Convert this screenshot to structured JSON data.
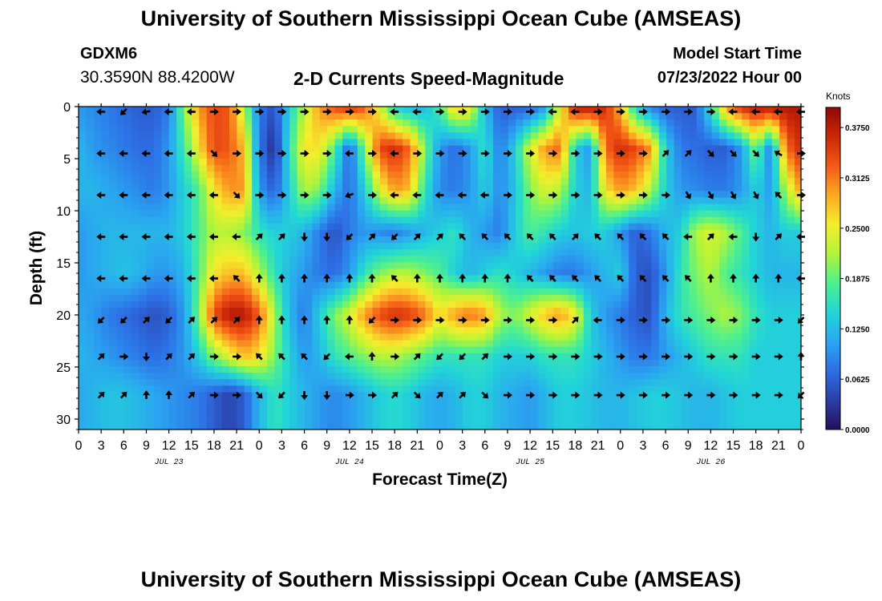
{
  "header": {
    "title": "University of Southern Mississippi Ocean Cube (AMSEAS)",
    "station": "GDXM6",
    "coords": "30.3590N  88.4200W",
    "subtitle": "2-D Currents Speed-Magnitude",
    "model_start_label": "Model Start Time",
    "model_start_value": "07/23/2022 Hour 00"
  },
  "footer": {
    "title_repeat": "University of Southern Mississippi Ocean Cube (AMSEAS)"
  },
  "chart_data": {
    "type": "heatmap",
    "title": "2-D Currents Speed-Magnitude",
    "xlabel": "Forecast Time(Z)",
    "ylabel": "Depth (ft)",
    "x_range_hours": [
      0,
      96
    ],
    "y_range_ft": [
      0,
      31
    ],
    "x_tick_labels": [
      "0",
      "3",
      "6",
      "9",
      "12",
      "15",
      "18",
      "21",
      "0",
      "3",
      "6",
      "9",
      "12",
      "15",
      "18",
      "21",
      "0",
      "3",
      "6",
      "9",
      "12",
      "15",
      "18",
      "21",
      "0",
      "3",
      "6",
      "9",
      "12",
      "15",
      "18",
      "21",
      "0"
    ],
    "y_ticks": [
      0,
      5,
      10,
      15,
      20,
      25,
      30
    ],
    "y_tick_labels": [
      "0",
      "5",
      "10",
      "15",
      "20",
      "25",
      "30"
    ],
    "date_labels": [
      {
        "label": "JUL 23",
        "hour": 12
      },
      {
        "label": "JUL 24",
        "hour": 36
      },
      {
        "label": "JUL 25",
        "hour": 60
      },
      {
        "label": "JUL 26",
        "hour": 84
      }
    ],
    "colorbar": {
      "units": "Knots",
      "min": 0.0,
      "max": 0.4,
      "tick_values": [
        0.0,
        0.0625,
        0.125,
        0.1875,
        0.25,
        0.3125,
        0.375
      ],
      "tick_labels": [
        "0.0000",
        "0.0625",
        "0.1250",
        "0.1875",
        "0.2500",
        "0.3125",
        "0.3750"
      ],
      "colors": [
        "#23105e",
        "#2b3fa6",
        "#2d6fe6",
        "#2aa7f0",
        "#22d6d6",
        "#4ef08e",
        "#b2f438",
        "#f4ee2c",
        "#fbaa24",
        "#f45a16",
        "#cc2706",
        "#8e0a06"
      ]
    },
    "depth_levels_ft": [
      0,
      4,
      8,
      12,
      16,
      20,
      24,
      27.5
    ],
    "speed_knots_by_depth": [
      [
        0.1,
        0.09,
        0.08,
        0.07,
        0.06,
        0.06,
        0.08,
        0.2,
        0.3,
        0.34,
        0.33,
        0.22,
        0.08,
        0.05,
        0.14,
        0.22,
        0.3,
        0.34,
        0.36,
        0.33,
        0.24,
        0.14,
        0.12,
        0.12,
        0.18,
        0.28,
        0.26,
        0.12,
        0.06,
        0.06,
        0.06,
        0.1,
        0.24,
        0.38,
        0.38,
        0.36,
        0.28,
        0.14,
        0.08,
        0.06,
        0.06,
        0.06,
        0.16,
        0.3,
        0.36,
        0.38,
        0.38,
        0.38,
        0.38
      ],
      [
        0.12,
        0.1,
        0.09,
        0.08,
        0.07,
        0.07,
        0.1,
        0.17,
        0.26,
        0.34,
        0.33,
        0.28,
        0.08,
        0.02,
        0.16,
        0.26,
        0.26,
        0.18,
        0.06,
        0.2,
        0.34,
        0.36,
        0.32,
        0.2,
        0.1,
        0.07,
        0.1,
        0.16,
        0.08,
        0.14,
        0.24,
        0.3,
        0.32,
        0.14,
        0.1,
        0.32,
        0.36,
        0.34,
        0.3,
        0.14,
        0.08,
        0.07,
        0.06,
        0.06,
        0.1,
        0.2,
        0.08,
        0.32,
        0.36
      ],
      [
        0.12,
        0.12,
        0.11,
        0.1,
        0.09,
        0.08,
        0.1,
        0.14,
        0.18,
        0.26,
        0.3,
        0.3,
        0.1,
        0.06,
        0.14,
        0.22,
        0.2,
        0.12,
        0.07,
        0.14,
        0.24,
        0.3,
        0.28,
        0.16,
        0.09,
        0.08,
        0.1,
        0.14,
        0.09,
        0.13,
        0.2,
        0.24,
        0.22,
        0.14,
        0.12,
        0.26,
        0.3,
        0.28,
        0.22,
        0.14,
        0.1,
        0.09,
        0.08,
        0.08,
        0.1,
        0.14,
        0.1,
        0.22,
        0.3
      ],
      [
        0.1,
        0.11,
        0.12,
        0.12,
        0.12,
        0.12,
        0.12,
        0.14,
        0.18,
        0.22,
        0.22,
        0.2,
        0.16,
        0.14,
        0.14,
        0.12,
        0.08,
        0.05,
        0.08,
        0.1,
        0.09,
        0.08,
        0.1,
        0.12,
        0.14,
        0.16,
        0.12,
        0.1,
        0.08,
        0.14,
        0.18,
        0.16,
        0.14,
        0.13,
        0.14,
        0.14,
        0.1,
        0.06,
        0.08,
        0.12,
        0.14,
        0.22,
        0.24,
        0.22,
        0.18,
        0.14,
        0.12,
        0.14,
        0.14
      ],
      [
        0.1,
        0.11,
        0.12,
        0.13,
        0.12,
        0.1,
        0.1,
        0.12,
        0.18,
        0.26,
        0.28,
        0.28,
        0.22,
        0.16,
        0.12,
        0.1,
        0.08,
        0.07,
        0.1,
        0.16,
        0.2,
        0.22,
        0.22,
        0.2,
        0.18,
        0.14,
        0.12,
        0.14,
        0.16,
        0.14,
        0.12,
        0.1,
        0.08,
        0.08,
        0.1,
        0.12,
        0.14,
        0.06,
        0.05,
        0.1,
        0.16,
        0.2,
        0.22,
        0.18,
        0.16,
        0.14,
        0.12,
        0.12,
        0.12
      ],
      [
        0.11,
        0.1,
        0.08,
        0.07,
        0.06,
        0.05,
        0.06,
        0.1,
        0.2,
        0.34,
        0.38,
        0.38,
        0.33,
        0.22,
        0.12,
        0.08,
        0.14,
        0.2,
        0.24,
        0.3,
        0.34,
        0.36,
        0.35,
        0.32,
        0.26,
        0.3,
        0.32,
        0.3,
        0.22,
        0.2,
        0.24,
        0.28,
        0.3,
        0.26,
        0.14,
        0.1,
        0.08,
        0.06,
        0.05,
        0.12,
        0.16,
        0.18,
        0.2,
        0.22,
        0.2,
        0.16,
        0.14,
        0.14,
        0.14
      ],
      [
        0.12,
        0.11,
        0.1,
        0.09,
        0.08,
        0.07,
        0.08,
        0.1,
        0.14,
        0.2,
        0.24,
        0.28,
        0.26,
        0.2,
        0.14,
        0.1,
        0.12,
        0.16,
        0.18,
        0.2,
        0.22,
        0.22,
        0.2,
        0.18,
        0.16,
        0.16,
        0.16,
        0.16,
        0.14,
        0.14,
        0.14,
        0.16,
        0.16,
        0.16,
        0.14,
        0.12,
        0.1,
        0.08,
        0.08,
        0.1,
        0.12,
        0.14,
        0.16,
        0.16,
        0.16,
        0.14,
        0.14,
        0.14,
        0.14
      ],
      [
        0.11,
        0.12,
        0.13,
        0.13,
        0.12,
        0.11,
        0.1,
        0.09,
        0.08,
        0.06,
        0.04,
        0.06,
        0.12,
        0.16,
        0.14,
        0.12,
        0.1,
        0.09,
        0.1,
        0.12,
        0.14,
        0.15,
        0.14,
        0.12,
        0.11,
        0.12,
        0.14,
        0.14,
        0.12,
        0.11,
        0.1,
        0.12,
        0.14,
        0.14,
        0.13,
        0.12,
        0.12,
        0.13,
        0.14,
        0.14,
        0.13,
        0.12,
        0.12,
        0.13,
        0.14,
        0.14,
        0.14,
        0.14,
        0.14
      ]
    ],
    "arrow_hours": [
      3,
      6,
      9,
      12,
      15,
      18,
      21,
      24,
      27,
      30,
      33,
      36,
      39,
      42,
      45,
      48,
      51,
      54,
      57,
      60,
      63,
      66,
      69,
      72,
      75,
      78,
      81,
      84,
      87,
      90,
      93,
      96
    ],
    "arrow_rows": [
      {
        "depth_ft": 0.5,
        "angles_deg": [
          180,
          225,
          190,
          180,
          180,
          0,
          0,
          0,
          0,
          0,
          0,
          0,
          0,
          180,
          180,
          0,
          0,
          0,
          0,
          0,
          180,
          180,
          0,
          0,
          0,
          0,
          0,
          0,
          180,
          180,
          180,
          180
        ]
      },
      {
        "depth_ft": 4.5,
        "angles_deg": [
          180,
          180,
          180,
          180,
          180,
          315,
          0,
          0,
          0,
          0,
          0,
          180,
          0,
          180,
          0,
          0,
          0,
          0,
          0,
          0,
          0,
          0,
          0,
          0,
          0,
          45,
          45,
          315,
          315,
          315,
          150,
          0
        ]
      },
      {
        "depth_ft": 8.5,
        "angles_deg": [
          180,
          180,
          180,
          180,
          180,
          180,
          315,
          0,
          0,
          0,
          0,
          200,
          0,
          180,
          180,
          180,
          180,
          180,
          0,
          0,
          0,
          0,
          0,
          0,
          0,
          0,
          300,
          300,
          300,
          300,
          135,
          0
        ]
      },
      {
        "depth_ft": 12.5,
        "angles_deg": [
          180,
          180,
          180,
          180,
          180,
          180,
          180,
          45,
          45,
          270,
          270,
          225,
          45,
          225,
          45,
          45,
          135,
          135,
          135,
          135,
          135,
          45,
          135,
          135,
          135,
          135,
          180,
          45,
          180,
          270,
          45,
          180
        ]
      },
      {
        "depth_ft": 16.5,
        "angles_deg": [
          180,
          180,
          180,
          180,
          180,
          180,
          135,
          90,
          90,
          90,
          90,
          90,
          90,
          135,
          90,
          90,
          90,
          90,
          90,
          135,
          135,
          135,
          135,
          135,
          135,
          135,
          135,
          90,
          90,
          90,
          90,
          180
        ]
      },
      {
        "depth_ft": 20.5,
        "angles_deg": [
          225,
          225,
          45,
          225,
          45,
          45,
          45,
          90,
          90,
          90,
          90,
          90,
          225,
          0,
          0,
          0,
          0,
          0,
          0,
          0,
          0,
          45,
          180,
          0,
          0,
          0,
          0,
          0,
          0,
          0,
          0,
          225
        ]
      },
      {
        "depth_ft": 24,
        "angles_deg": [
          45,
          0,
          270,
          45,
          45,
          0,
          0,
          135,
          135,
          135,
          225,
          180,
          90,
          0,
          45,
          225,
          225,
          45,
          0,
          0,
          0,
          0,
          0,
          0,
          0,
          0,
          0,
          0,
          0,
          0,
          0,
          90
        ]
      },
      {
        "depth_ft": 27.7,
        "angles_deg": [
          45,
          45,
          90,
          90,
          45,
          0,
          0,
          315,
          225,
          270,
          270,
          0,
          0,
          45,
          315,
          45,
          45,
          315,
          0,
          0,
          0,
          0,
          0,
          0,
          0,
          0,
          0,
          0,
          0,
          0,
          0,
          225
        ]
      }
    ]
  }
}
